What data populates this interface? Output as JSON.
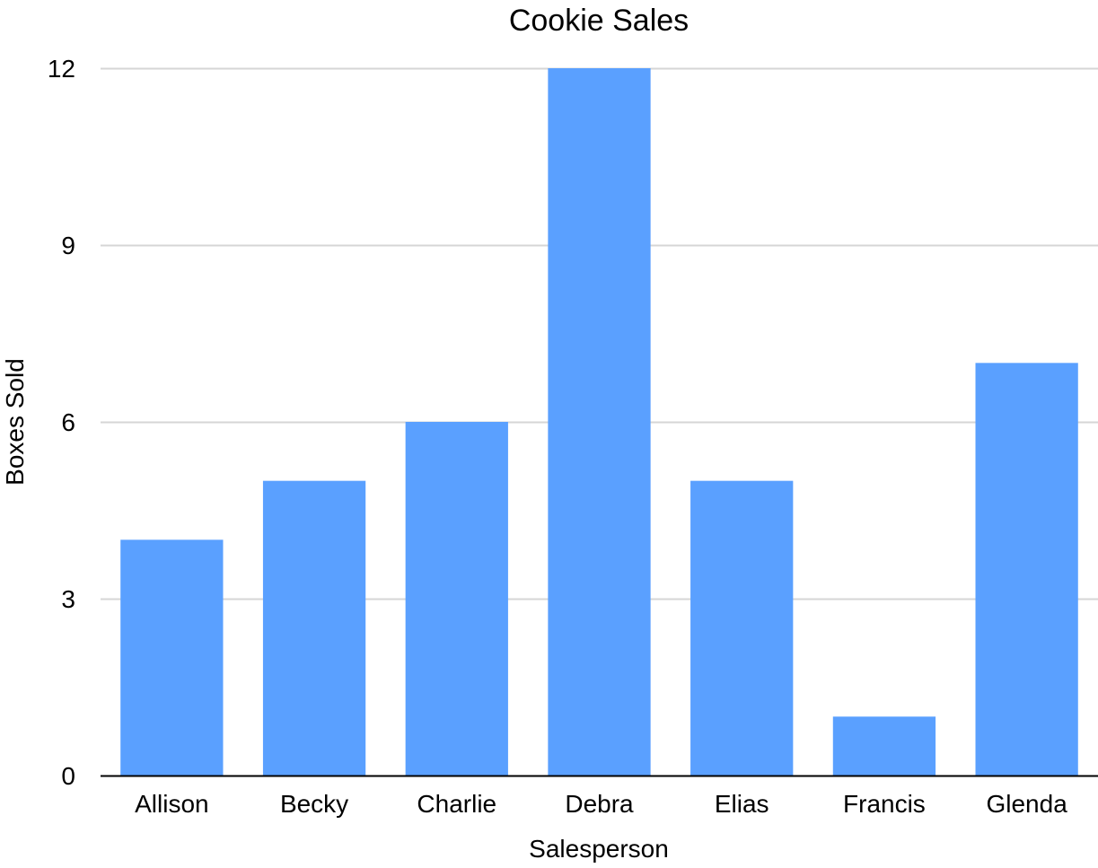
{
  "chart_data": {
    "type": "bar",
    "title": "Cookie Sales",
    "xlabel": "Salesperson",
    "ylabel": "Boxes Sold",
    "categories": [
      "Allison",
      "Becky",
      "Charlie",
      "Debra",
      "Elias",
      "Francis",
      "Glenda"
    ],
    "values": [
      4,
      5,
      6,
      12,
      5,
      1,
      7
    ],
    "ylim": [
      0,
      12
    ],
    "yticks": [
      "0",
      "3",
      "6",
      "9",
      "12"
    ],
    "grid": true,
    "legend": "none",
    "colors": {
      "bar": "#5aa0ff",
      "grid": "#d6d6d6",
      "axis": "#000000"
    }
  }
}
